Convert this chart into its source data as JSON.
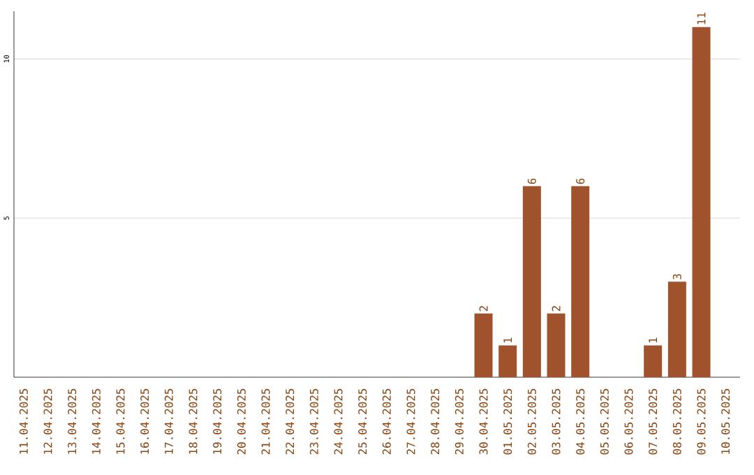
{
  "chart_data": {
    "type": "bar",
    "categories": [
      "11.04.2025",
      "12.04.2025",
      "13.04.2025",
      "14.04.2025",
      "15.04.2025",
      "16.04.2025",
      "17.04.2025",
      "18.04.2025",
      "19.04.2025",
      "20.04.2025",
      "21.04.2025",
      "22.04.2025",
      "23.04.2025",
      "24.04.2025",
      "25.04.2025",
      "26.04.2025",
      "27.04.2025",
      "28.04.2025",
      "29.04.2025",
      "30.04.2025",
      "01.05.2025",
      "02.05.2025",
      "03.05.2025",
      "04.05.2025",
      "05.05.2025",
      "06.05.2025",
      "07.05.2025",
      "08.05.2025",
      "09.05.2025",
      "10.05.2025"
    ],
    "values": [
      0,
      0,
      0,
      0,
      0,
      0,
      0,
      0,
      0,
      0,
      0,
      0,
      0,
      0,
      0,
      0,
      0,
      0,
      0,
      2,
      1,
      6,
      2,
      6,
      0,
      0,
      1,
      3,
      11,
      0
    ],
    "value_labels": [
      null,
      null,
      null,
      null,
      null,
      null,
      null,
      null,
      null,
      null,
      null,
      null,
      null,
      null,
      null,
      null,
      null,
      null,
      null,
      "2",
      "1",
      "6",
      "2",
      "6",
      null,
      null,
      "1",
      "3",
      "11",
      null
    ],
    "color": "#a0522d",
    "ylim": [
      0,
      11.5
    ],
    "yticks": [
      5,
      10
    ],
    "grid": "y"
  }
}
